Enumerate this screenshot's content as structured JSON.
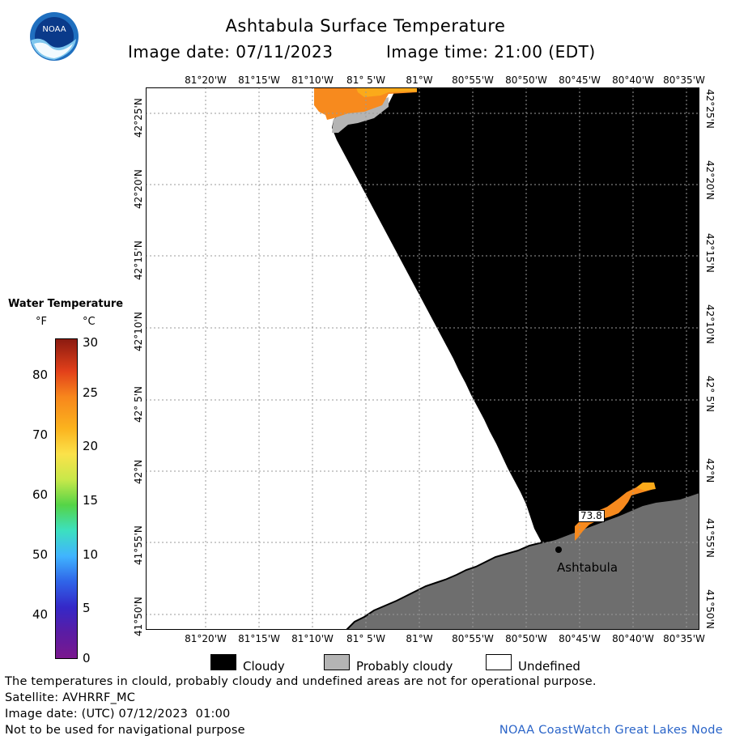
{
  "header": {
    "title": "Ashtabula Surface Temperature",
    "image_date": "Image date: 07/11/2023",
    "image_time": "Image time: 21:00 (EDT)",
    "logo_text": "NOAA"
  },
  "map": {
    "lon_labels": [
      "81°20'W",
      "81°15'W",
      "81°10'W",
      "81° 5'W",
      "81°W",
      "80°55'W",
      "80°50'W",
      "80°45'W",
      "80°40'W",
      "80°35'W"
    ],
    "lat_labels": [
      "42°25'N",
      "42°20'N",
      "42°15'N",
      "42°10'N",
      "42° 5'N",
      "42°N",
      "41°55'N",
      "41°50'N"
    ],
    "place_name": "Ashtabula",
    "temperature_marker": "73.8",
    "colors": {
      "cloudy": "#000000",
      "probably_cloudy": "#b4b4b4",
      "land": "#6e6e6e",
      "water_warm": "#f78a1e",
      "water_hot": "#fbaa1a",
      "undefined": "#ffffff"
    }
  },
  "legend": {
    "title": "Water Temperature",
    "unit_f": "°F",
    "unit_c": "°C",
    "f_ticks": [
      "80",
      "70",
      "60",
      "50",
      "40"
    ],
    "c_ticks": [
      "30",
      "25",
      "20",
      "15",
      "10",
      "5",
      "0"
    ]
  },
  "key": {
    "cloudy": "Cloudy",
    "probably_cloudy": "Probably cloudy",
    "undefined": "Undefined"
  },
  "footer": {
    "line1": "The temperatures in clould, probably cloudy and undefined areas are not for operational purpose.",
    "line2": "Satellite: AVHRRF_MC",
    "line3": "Image date: (UTC) 07/12/2023  01:00",
    "line4": "Not to be used for navigational purpose",
    "credit": "NOAA CoastWatch Great Lakes Node"
  }
}
